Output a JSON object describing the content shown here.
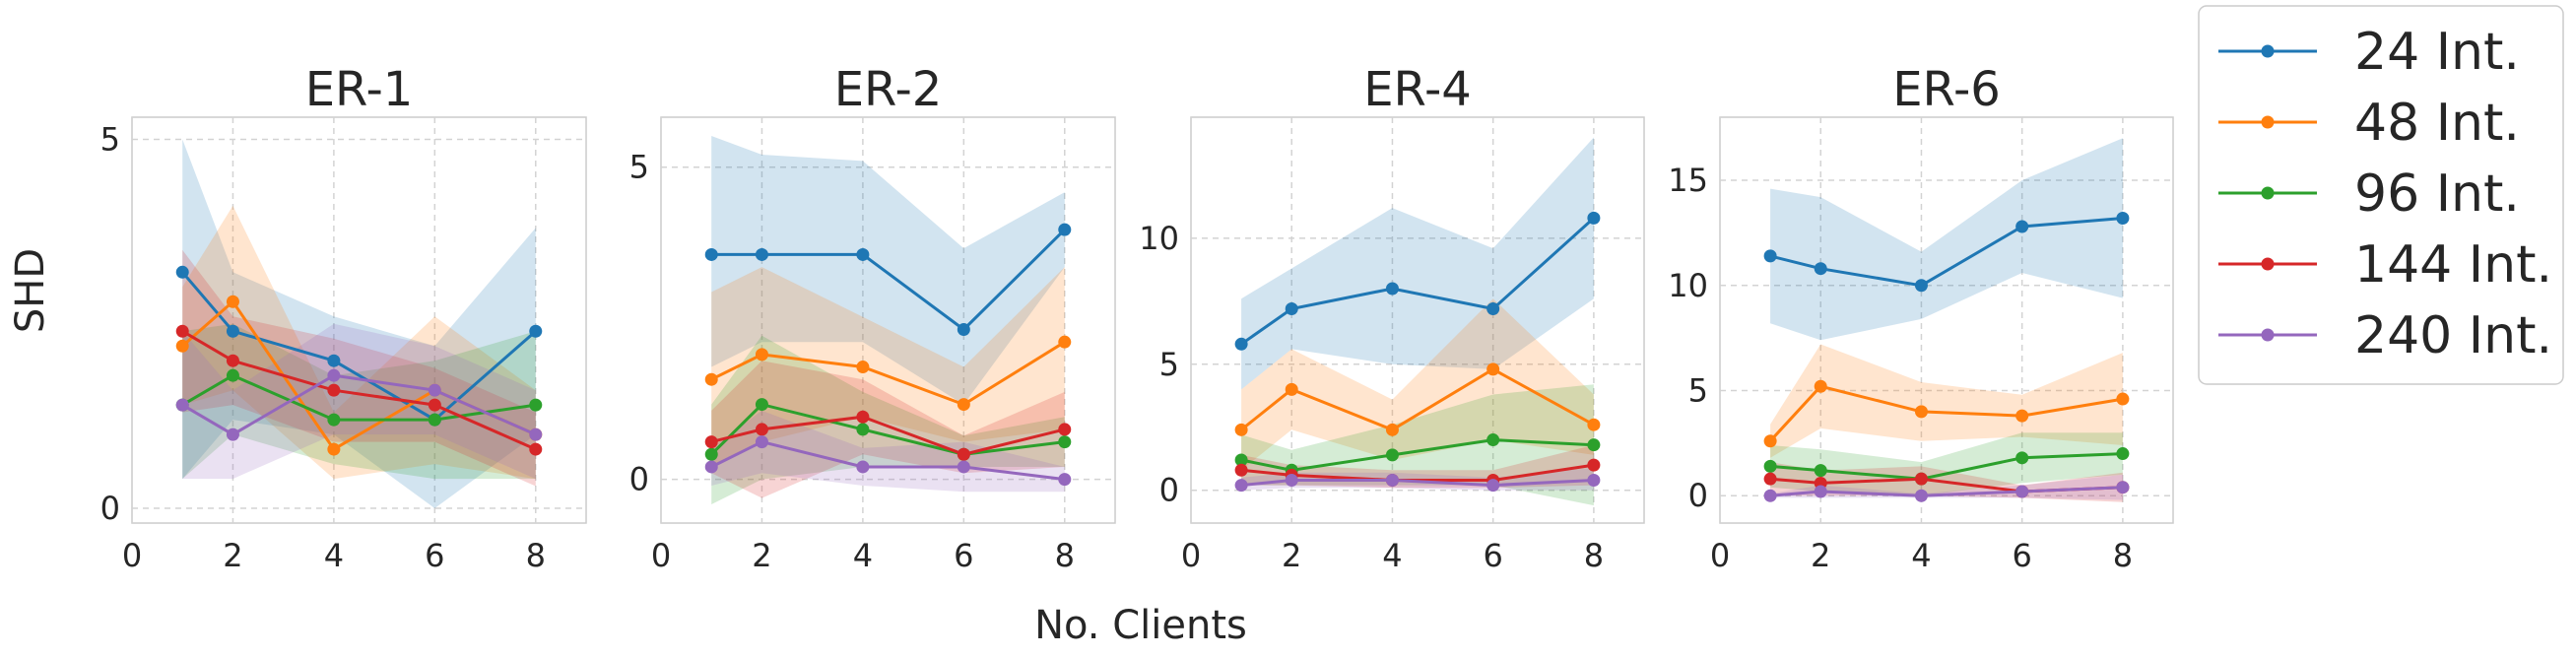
{
  "figure": {
    "ylabel": "SHD",
    "xlabel": "No. Clients"
  },
  "series_colors": [
    "#1f77b4",
    "#ff7f0e",
    "#2ca02c",
    "#d62728",
    "#9467bd"
  ],
  "chart_data": [
    {
      "type": "line",
      "title": "ER-1",
      "xlabel": "No. Clients",
      "ylabel": "SHD",
      "xlim": [
        0,
        9
      ],
      "ylim": [
        -0.2,
        5.3
      ],
      "xticks": [
        0,
        2,
        4,
        6,
        8
      ],
      "yticks": [
        0,
        5
      ],
      "grid": true,
      "x": [
        1,
        2,
        4,
        6,
        8
      ],
      "series": [
        {
          "name": "24 Int.",
          "values": [
            3.2,
            2.4,
            2.0,
            1.2,
            2.4
          ],
          "lower": [
            0.4,
            1.2,
            1.0,
            0.0,
            1.0
          ],
          "upper": [
            5.0,
            3.2,
            2.6,
            2.2,
            3.8
          ]
        },
        {
          "name": "48 Int.",
          "values": [
            2.2,
            2.8,
            0.8,
            1.6,
            1.0
          ],
          "lower": [
            1.4,
            1.6,
            0.4,
            0.6,
            0.4
          ],
          "upper": [
            3.0,
            4.1,
            1.3,
            2.6,
            1.6
          ]
        },
        {
          "name": "96 Int.",
          "values": [
            1.4,
            1.8,
            1.2,
            1.2,
            1.4
          ],
          "lower": [
            0.4,
            1.0,
            0.6,
            0.4,
            0.4
          ],
          "upper": [
            2.4,
            2.5,
            1.8,
            2.0,
            2.4
          ]
        },
        {
          "name": "144 Int.",
          "values": [
            2.4,
            2.0,
            1.6,
            1.4,
            0.8
          ],
          "lower": [
            1.3,
            1.4,
            0.9,
            0.9,
            0.3
          ],
          "upper": [
            3.5,
            2.6,
            2.3,
            1.9,
            1.3
          ]
        },
        {
          "name": "240 Int.",
          "values": [
            1.4,
            1.0,
            1.8,
            1.6,
            1.0
          ],
          "lower": [
            0.4,
            0.4,
            1.0,
            1.0,
            0.4
          ],
          "upper": [
            2.4,
            1.6,
            2.5,
            2.2,
            1.6
          ]
        }
      ]
    },
    {
      "type": "line",
      "title": "ER-2",
      "xlabel": "No. Clients",
      "ylabel": "SHD",
      "xlim": [
        0,
        9
      ],
      "ylim": [
        -0.7,
        5.8
      ],
      "xticks": [
        0,
        2,
        4,
        6,
        8
      ],
      "yticks": [
        0,
        5
      ],
      "grid": true,
      "x": [
        1,
        2,
        4,
        6,
        8
      ],
      "series": [
        {
          "name": "24 Int.",
          "values": [
            3.6,
            3.6,
            3.6,
            2.4,
            4.0
          ],
          "lower": [
            1.8,
            2.2,
            2.2,
            1.2,
            3.4
          ],
          "upper": [
            5.5,
            5.2,
            5.1,
            3.7,
            4.6
          ]
        },
        {
          "name": "48 Int.",
          "values": [
            1.6,
            2.0,
            1.8,
            1.2,
            2.2
          ],
          "lower": [
            0.2,
            0.6,
            1.0,
            0.6,
            0.8
          ],
          "upper": [
            3.0,
            3.4,
            2.6,
            1.8,
            3.4
          ]
        },
        {
          "name": "96 Int.",
          "values": [
            0.4,
            1.2,
            0.8,
            0.4,
            0.6
          ],
          "lower": [
            -0.4,
            0.0,
            0.2,
            0.2,
            0.2
          ],
          "upper": [
            1.2,
            2.3,
            1.4,
            0.7,
            1.0
          ]
        },
        {
          "name": "144 Int.",
          "values": [
            0.6,
            0.8,
            1.0,
            0.4,
            0.8
          ],
          "lower": [
            0.1,
            -0.3,
            0.4,
            0.1,
            0.2
          ],
          "upper": [
            1.1,
            1.9,
            1.6,
            0.7,
            1.4
          ]
        },
        {
          "name": "240 Int.",
          "values": [
            0.2,
            0.6,
            0.2,
            0.2,
            0.0
          ],
          "lower": [
            -0.1,
            0.1,
            -0.1,
            -0.2,
            -0.2
          ],
          "upper": [
            0.5,
            1.1,
            0.5,
            0.6,
            0.2
          ]
        }
      ]
    },
    {
      "type": "line",
      "title": "ER-4",
      "xlabel": "No. Clients",
      "ylabel": "SHD",
      "xlim": [
        0,
        9
      ],
      "ylim": [
        -1.3,
        14.8
      ],
      "xticks": [
        0,
        2,
        4,
        6,
        8
      ],
      "yticks": [
        0,
        5,
        10
      ],
      "grid": true,
      "x": [
        1,
        2,
        4,
        6,
        8
      ],
      "series": [
        {
          "name": "24 Int.",
          "values": [
            5.8,
            7.2,
            8.0,
            7.2,
            10.8
          ],
          "lower": [
            4.0,
            5.6,
            5.0,
            4.8,
            7.6
          ],
          "upper": [
            7.6,
            8.8,
            11.2,
            9.6,
            14.0
          ]
        },
        {
          "name": "48 Int.",
          "values": [
            2.4,
            4.0,
            2.4,
            4.8,
            2.6
          ],
          "lower": [
            0.8,
            2.4,
            1.2,
            2.0,
            1.4
          ],
          "upper": [
            4.0,
            5.6,
            3.6,
            7.6,
            3.8
          ]
        },
        {
          "name": "96 Int.",
          "values": [
            1.2,
            0.8,
            1.4,
            2.0,
            1.8
          ],
          "lower": [
            0.2,
            0.2,
            0.2,
            0.2,
            -0.6
          ],
          "upper": [
            2.2,
            1.6,
            2.6,
            3.8,
            4.2
          ]
        },
        {
          "name": "144 Int.",
          "values": [
            0.8,
            0.6,
            0.4,
            0.4,
            1.0
          ],
          "lower": [
            0.2,
            0.2,
            0.1,
            0.1,
            0.2
          ],
          "upper": [
            1.4,
            1.0,
            0.8,
            0.8,
            1.8
          ]
        },
        {
          "name": "240 Int.",
          "values": [
            0.2,
            0.4,
            0.4,
            0.2,
            0.4
          ],
          "lower": [
            0.0,
            0.1,
            0.1,
            0.0,
            0.0
          ],
          "upper": [
            0.5,
            0.7,
            0.7,
            0.5,
            0.9
          ]
        }
      ]
    },
    {
      "type": "line",
      "title": "ER-6",
      "xlabel": "No. Clients",
      "ylabel": "SHD",
      "xlim": [
        0,
        9
      ],
      "ylim": [
        -1.3,
        18.0
      ],
      "xticks": [
        0,
        2,
        4,
        6,
        8
      ],
      "yticks": [
        0,
        5,
        10,
        15
      ],
      "grid": true,
      "x": [
        1,
        2,
        4,
        6,
        8
      ],
      "series": [
        {
          "name": "24 Int.",
          "values": [
            11.4,
            10.8,
            10.0,
            12.8,
            13.2
          ],
          "lower": [
            8.2,
            7.4,
            8.4,
            10.6,
            9.4
          ],
          "upper": [
            14.6,
            14.2,
            11.6,
            15.0,
            17.0
          ]
        },
        {
          "name": "48 Int.",
          "values": [
            2.6,
            5.2,
            4.0,
            3.8,
            4.6
          ],
          "lower": [
            1.8,
            3.2,
            2.6,
            2.8,
            2.4
          ],
          "upper": [
            3.4,
            7.2,
            5.4,
            4.8,
            6.8
          ]
        },
        {
          "name": "96 Int.",
          "values": [
            1.4,
            1.2,
            0.8,
            1.8,
            2.0
          ],
          "lower": [
            0.4,
            0.2,
            0.0,
            0.6,
            1.0
          ],
          "upper": [
            2.4,
            2.2,
            1.6,
            3.0,
            3.0
          ]
        },
        {
          "name": "144 Int.",
          "values": [
            0.8,
            0.6,
            0.8,
            0.2,
            0.4
          ],
          "lower": [
            0.0,
            0.0,
            0.0,
            -0.1,
            -0.3
          ],
          "upper": [
            1.6,
            1.2,
            1.4,
            0.5,
            1.1
          ]
        },
        {
          "name": "240 Int.",
          "values": [
            0.0,
            0.2,
            0.0,
            0.2,
            0.4
          ],
          "lower": [
            -0.1,
            -0.1,
            -0.1,
            -0.1,
            -0.2
          ],
          "upper": [
            0.1,
            0.5,
            0.1,
            0.5,
            1.0
          ]
        }
      ]
    }
  ],
  "legend": {
    "placement": "right",
    "entries": [
      "24 Int.",
      "48 Int.",
      "96 Int.",
      "144 Int.",
      "240 Int."
    ]
  }
}
